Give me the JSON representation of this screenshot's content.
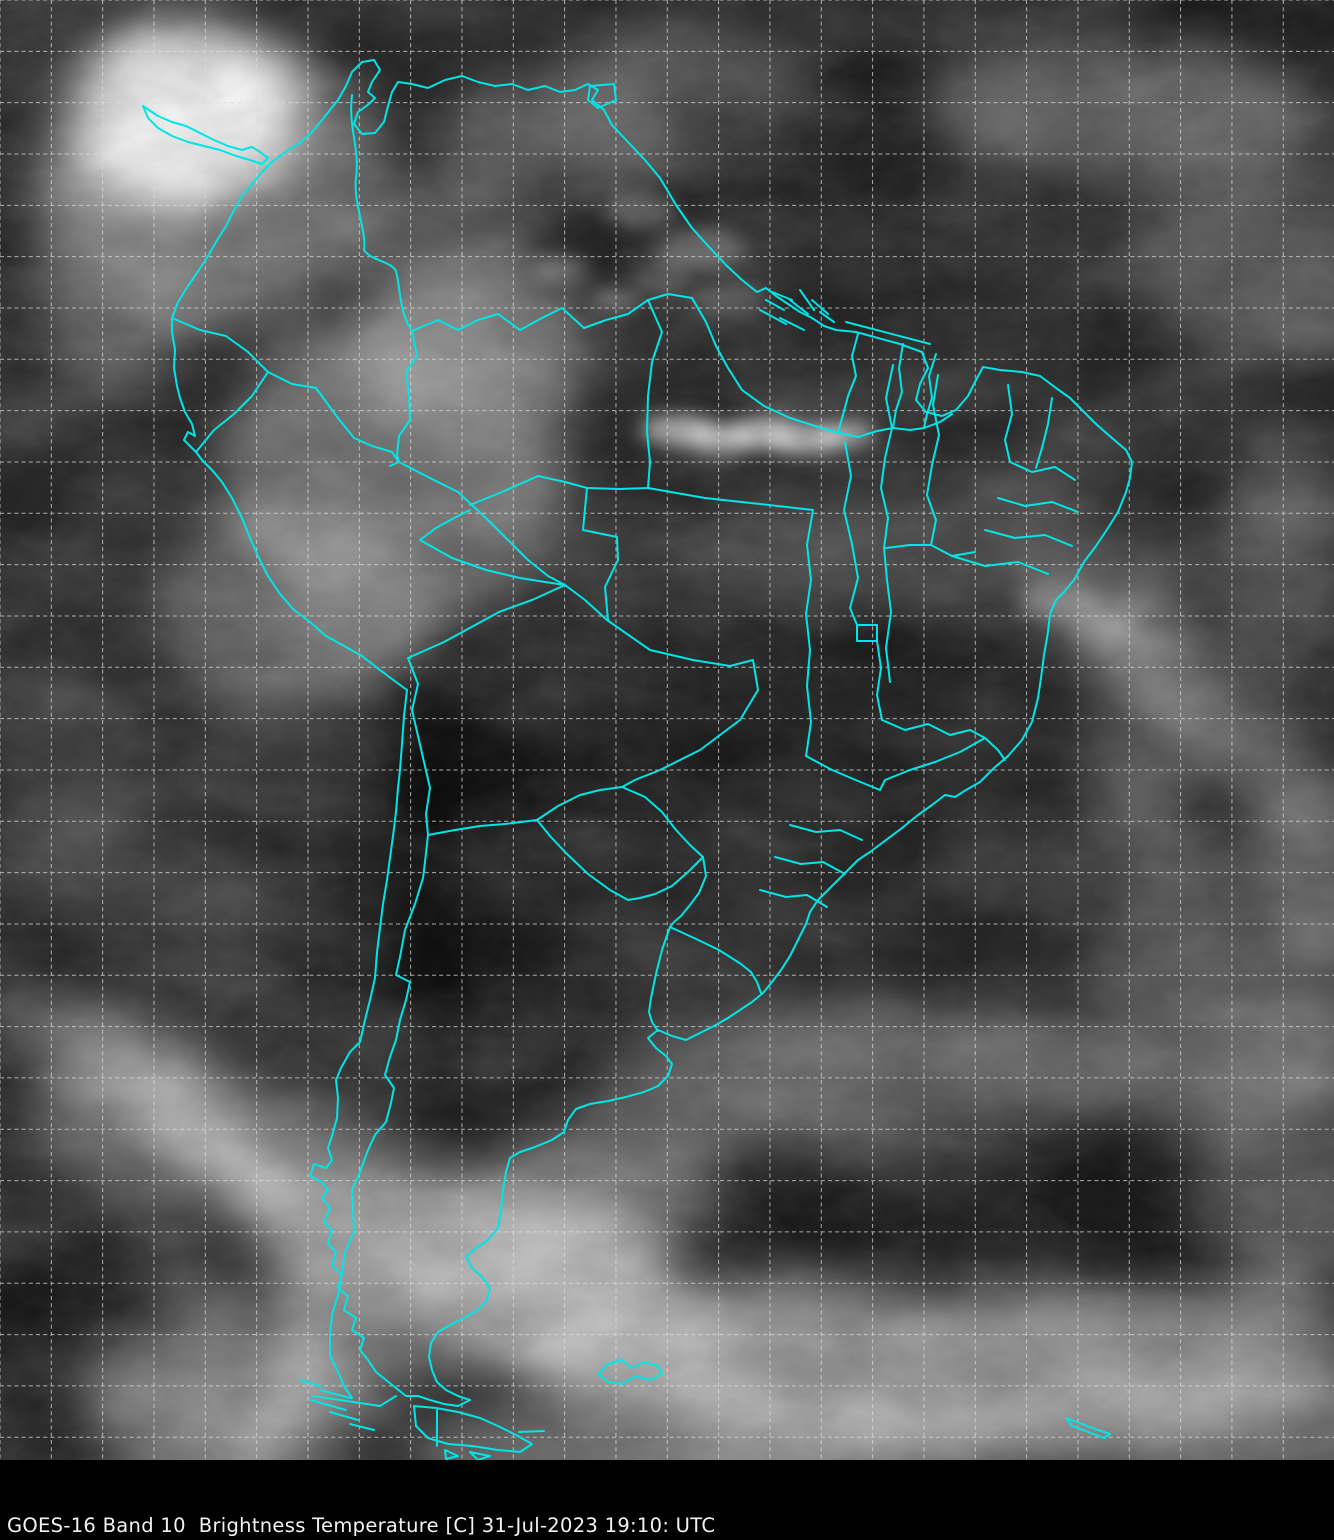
{
  "caption": {
    "text": "GOES-16 Band 10  Brightness Temperature [C] 31-Jul-2023 19:10: UTC",
    "satellite": "GOES-16",
    "band": "Band 10",
    "product": "Brightness Temperature",
    "units": "C",
    "date": "31-Jul-2023",
    "time": "19:10",
    "timezone": "UTC"
  },
  "map": {
    "region": "South America",
    "colors": {
      "border": "#00E6E6",
      "graticule": "#DCDCDC",
      "ocean_base": "#2A2A2A",
      "caption_text": "#F2F2F2",
      "caption_background": "#000000"
    }
  }
}
